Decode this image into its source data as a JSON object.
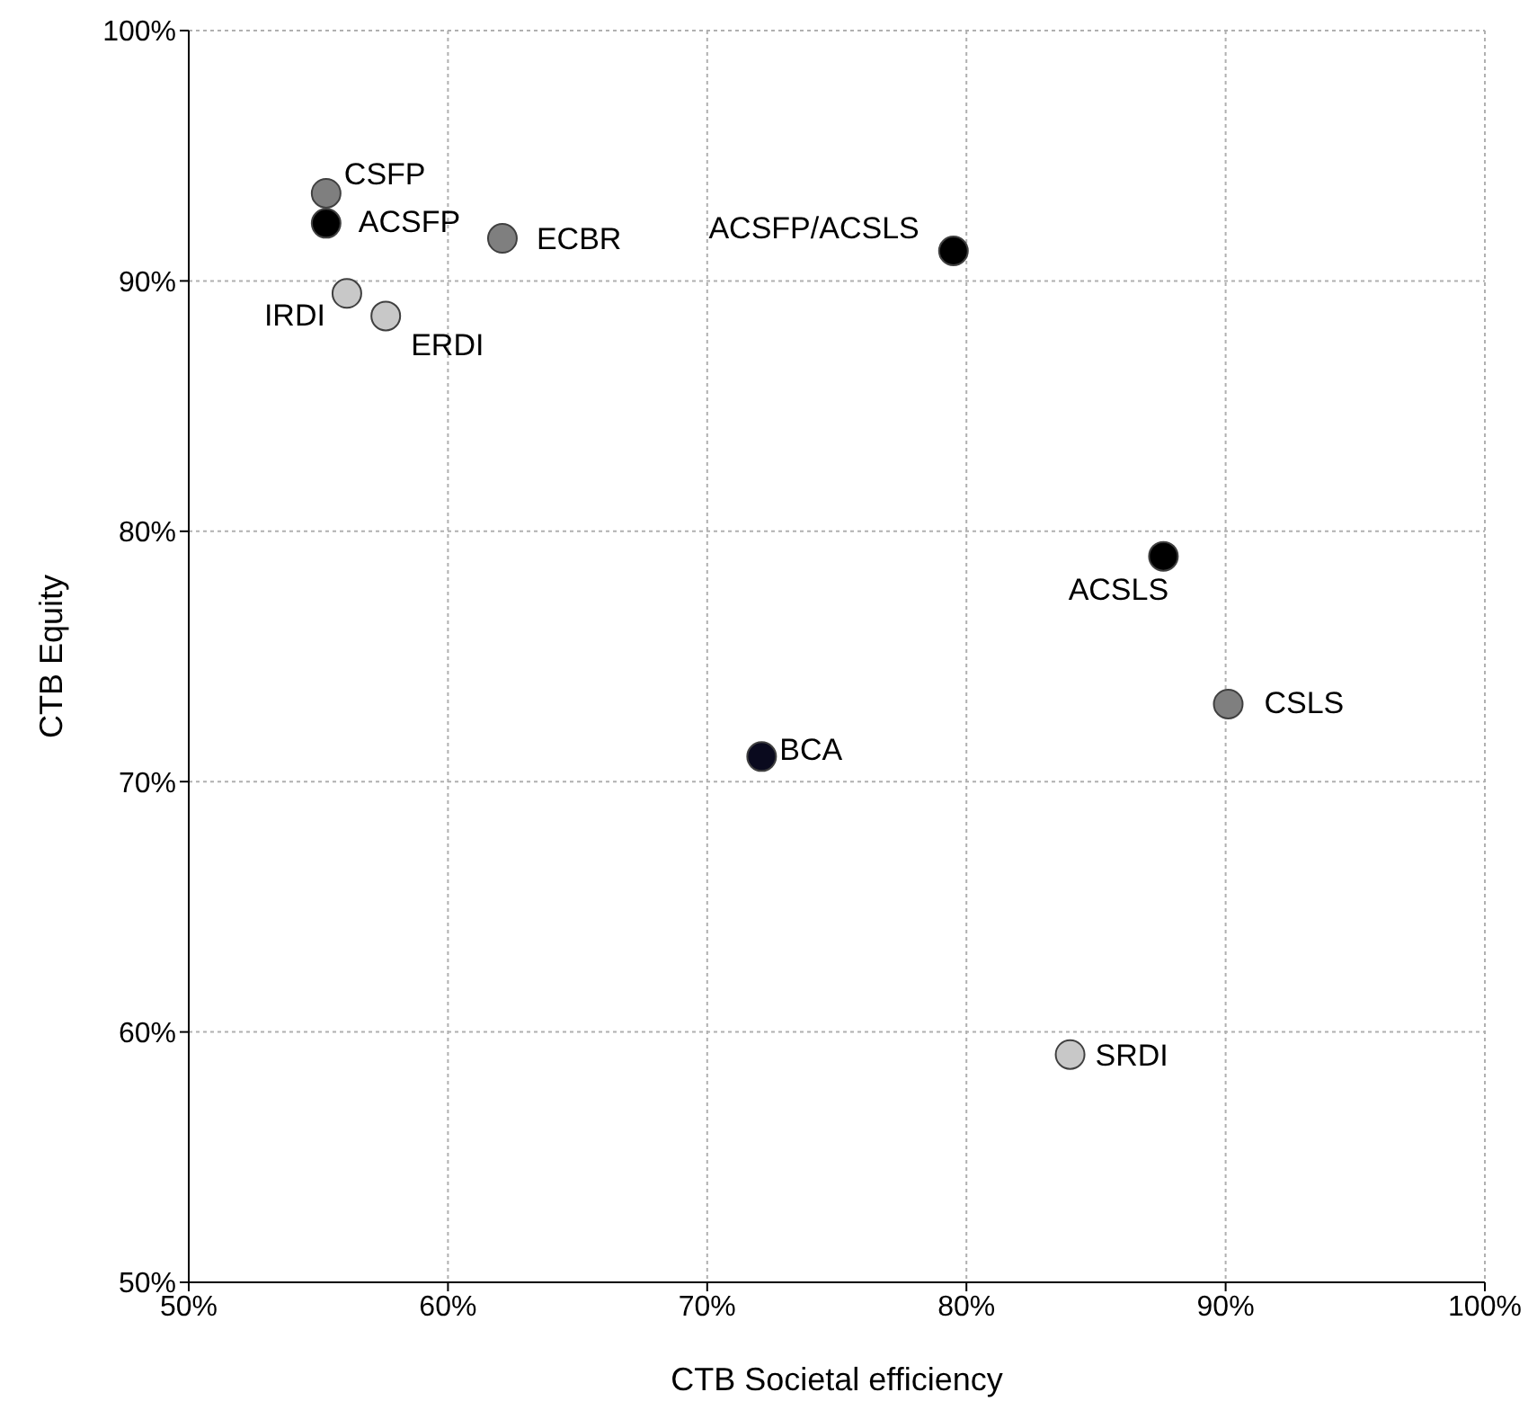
{
  "chart_data": {
    "type": "scatter",
    "xlabel": "CTB Societal efficiency",
    "ylabel": "CTB Equity",
    "x": [
      55.3,
      55.3,
      62.1,
      56.1,
      57.6,
      79.5,
      87.6,
      90.1,
      72.1,
      84.0
    ],
    "values": [
      93.5,
      92.3,
      91.7,
      89.5,
      88.6,
      91.2,
      79.0,
      73.1,
      71.0,
      59.1
    ],
    "colors": [
      "#7f7f7f",
      "#000000",
      "#7f7f7f",
      "#c8c8c8",
      "#c8c8c8",
      "#000000",
      "#000000",
      "#7f7f7f",
      "#0a0a1e",
      "#c8c8c8"
    ],
    "xlim": [
      50,
      100
    ],
    "ylim": [
      50,
      100
    ],
    "xticks": [
      {
        "value": 50,
        "label": "50%"
      },
      {
        "value": 60,
        "label": "60%"
      },
      {
        "value": 70,
        "label": "70%"
      },
      {
        "value": 80,
        "label": "80%"
      },
      {
        "value": 90,
        "label": "90%"
      },
      {
        "value": 100,
        "label": "100%"
      }
    ],
    "yticks": [
      {
        "value": 50,
        "label": "50%"
      },
      {
        "value": 60,
        "label": "60%"
      },
      {
        "value": 70,
        "label": "70%"
      },
      {
        "value": 80,
        "label": "80%"
      },
      {
        "value": 90,
        "label": "90%"
      },
      {
        "value": 100,
        "label": "100%"
      }
    ],
    "grid": true,
    "marker": "circle",
    "legend": false,
    "annotations": [
      {
        "text": "CSFP",
        "x": 55.3,
        "y": 93.5
      },
      {
        "text": "ACSFP",
        "x": 55.3,
        "y": 92.3
      },
      {
        "text": "ECBR",
        "x": 62.1,
        "y": 91.7
      },
      {
        "text": "IRDI",
        "x": 56.1,
        "y": 89.5
      },
      {
        "text": "ERDI",
        "x": 57.6,
        "y": 88.6
      },
      {
        "text": "ACSFP/ACSLS",
        "x": 79.5,
        "y": 91.2
      },
      {
        "text": "ACSLS",
        "x": 87.6,
        "y": 79.0
      },
      {
        "text": "CSLS",
        "x": 90.1,
        "y": 73.1
      },
      {
        "text": "BCA",
        "x": 72.1,
        "y": 71.0
      },
      {
        "text": "SRDI",
        "x": 84.0,
        "y": 59.1
      }
    ]
  }
}
